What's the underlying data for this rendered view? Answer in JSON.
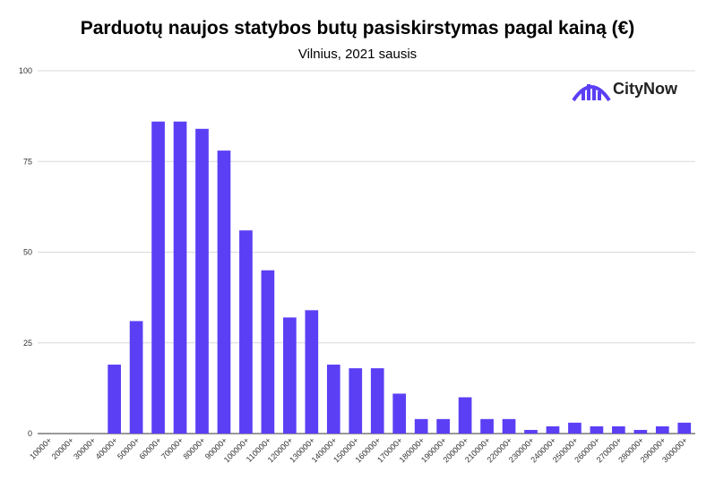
{
  "chart_data": {
    "type": "bar",
    "title": "Parduotų naujos statybos butų pasiskirstymas pagal kainą (€)",
    "subtitle": "Vilnius, 2021 sausis",
    "xlabel": "",
    "ylabel": "",
    "ylim": [
      0,
      100
    ],
    "yticks": [
      0,
      25,
      50,
      75,
      100
    ],
    "grid": true,
    "bar_color": "#5a3ff5",
    "categories": [
      "10000+",
      "20000+",
      "30000+",
      "40000+",
      "50000+",
      "60000+",
      "70000+",
      "80000+",
      "90000+",
      "100000+",
      "110000+",
      "120000+",
      "130000+",
      "140000+",
      "150000+",
      "160000+",
      "170000+",
      "180000+",
      "190000+",
      "200000+",
      "210000+",
      "220000+",
      "230000+",
      "240000+",
      "250000+",
      "260000+",
      "270000+",
      "280000+",
      "290000+",
      "300000+"
    ],
    "values": [
      0,
      0,
      0,
      19,
      31,
      86,
      86,
      84,
      78,
      56,
      45,
      32,
      34,
      19,
      18,
      18,
      11,
      4,
      4,
      10,
      4,
      4,
      1,
      2,
      3,
      2,
      2,
      1,
      2,
      3
    ]
  },
  "logo": {
    "text": "CityNow",
    "color": "#5a3ff5"
  }
}
